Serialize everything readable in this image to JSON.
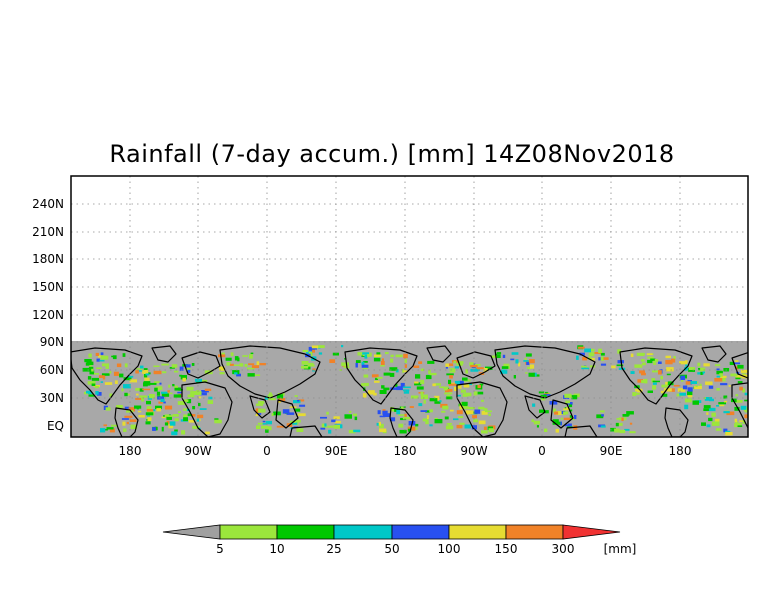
{
  "title": "Rainfall (7-day accum.) [mm] 14Z08Nov2018",
  "y_tick_labels": [
    "240N",
    "210N",
    "180N",
    "150N",
    "120N",
    "90N",
    "60N",
    "30N",
    "EQ"
  ],
  "x_tick_labels": [
    "180",
    "90W",
    "0",
    "90E",
    "180",
    "90W",
    "0",
    "90E",
    "180"
  ],
  "legend": {
    "unit": "[mm]",
    "labels": [
      "5",
      "10",
      "25",
      "50",
      "100",
      "150",
      "300"
    ],
    "colors": [
      "#a0a0a0",
      "#9be63c",
      "#00c800",
      "#00c8c8",
      "#2850f0",
      "#e6dc32",
      "#f08228",
      "#f03232"
    ]
  },
  "colors": {
    "no_rain": "#a8a8a8",
    "coast": "#000000",
    "grid": "#8c8c8c"
  }
}
